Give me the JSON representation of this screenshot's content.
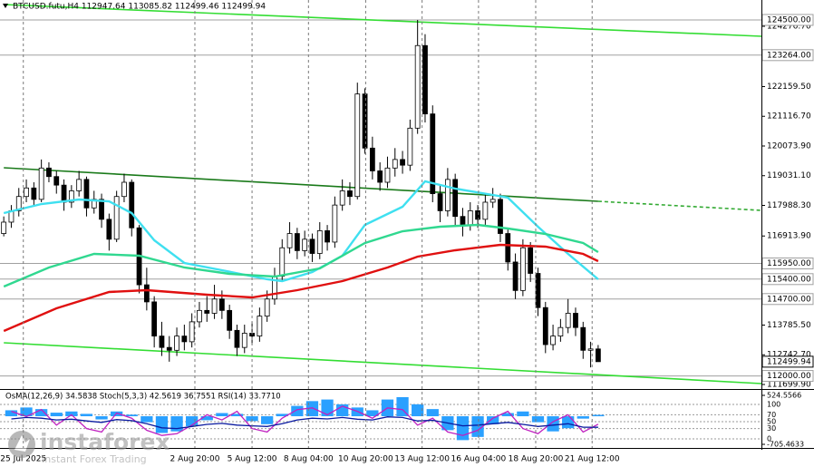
{
  "chart_data": [
    {
      "type": "candlestick",
      "title": "BTCUSD.futu,H4 112947.64 113085.82 112499.46 112499.94",
      "ohlc": [
        [
          117000,
          117600,
          116900,
          117400
        ],
        [
          117400,
          118000,
          117200,
          117800
        ],
        [
          117800,
          118600,
          117600,
          118300
        ],
        [
          118300,
          118900,
          118100,
          118600
        ],
        [
          118600,
          118800,
          118000,
          118200
        ],
        [
          118200,
          119600,
          118100,
          119300
        ],
        [
          119300,
          119500,
          118800,
          119000
        ],
        [
          119000,
          119200,
          118400,
          118700
        ],
        [
          118700,
          118900,
          117800,
          118100
        ],
        [
          118100,
          118700,
          117900,
          118500
        ],
        [
          118500,
          119200,
          118300,
          118900
        ],
        [
          118900,
          119000,
          117600,
          117900
        ],
        [
          117900,
          118500,
          117700,
          118200
        ],
        [
          118200,
          118400,
          117200,
          117500
        ],
        [
          117500,
          117700,
          116400,
          116800
        ],
        [
          116800,
          118500,
          116700,
          118300
        ],
        [
          118300,
          119100,
          118100,
          118800
        ],
        [
          118800,
          118900,
          116900,
          117200
        ],
        [
          117200,
          117300,
          114900,
          115200
        ],
        [
          115200,
          115800,
          114300,
          114600
        ],
        [
          114600,
          114800,
          113000,
          113400
        ],
        [
          113400,
          113900,
          112700,
          113000
        ],
        [
          113000,
          113400,
          112500,
          112900
        ],
        [
          112900,
          113700,
          112700,
          113400
        ],
        [
          113400,
          113800,
          112900,
          113200
        ],
        [
          113200,
          114200,
          113000,
          113900
        ],
        [
          113900,
          114600,
          113700,
          114300
        ],
        [
          114300,
          114800,
          113900,
          114200
        ],
        [
          114200,
          115200,
          114000,
          114700
        ],
        [
          114700,
          115000,
          114000,
          114300
        ],
        [
          114300,
          114500,
          113300,
          113600
        ],
        [
          113600,
          113800,
          112700,
          113000
        ],
        [
          113000,
          113800,
          112800,
          113500
        ],
        [
          113500,
          113900,
          113100,
          113400
        ],
        [
          113400,
          114400,
          113200,
          114100
        ],
        [
          114100,
          115000,
          113900,
          114700
        ],
        [
          114700,
          115800,
          114500,
          115500
        ],
        [
          115500,
          116800,
          115300,
          116500
        ],
        [
          116500,
          117400,
          116300,
          117000
        ],
        [
          117000,
          117200,
          116100,
          116400
        ],
        [
          116400,
          117100,
          116200,
          116800
        ],
        [
          116800,
          117000,
          116000,
          116300
        ],
        [
          116300,
          117400,
          116100,
          117100
        ],
        [
          117100,
          117300,
          116400,
          116700
        ],
        [
          116700,
          118300,
          116500,
          118000
        ],
        [
          118000,
          118900,
          117800,
          118500
        ],
        [
          118500,
          118800,
          118000,
          118300
        ],
        [
          118300,
          122300,
          118200,
          121900
        ],
        [
          121900,
          122100,
          119800,
          120000
        ],
        [
          120000,
          120400,
          118900,
          119200
        ],
        [
          119200,
          119500,
          118500,
          118800
        ],
        [
          118800,
          119700,
          118600,
          119300
        ],
        [
          119300,
          120000,
          119000,
          119600
        ],
        [
          119600,
          119900,
          119100,
          119400
        ],
        [
          119400,
          121000,
          119200,
          120700
        ],
        [
          120700,
          124500,
          120500,
          123600
        ],
        [
          123600,
          124000,
          120900,
          121200
        ],
        [
          121200,
          121500,
          118100,
          118400
        ],
        [
          118400,
          118700,
          117400,
          117800
        ],
        [
          117800,
          119300,
          117600,
          118900
        ],
        [
          118900,
          119100,
          117300,
          117600
        ],
        [
          117600,
          117900,
          116900,
          117300
        ],
        [
          117300,
          118100,
          117100,
          117800
        ],
        [
          117800,
          118000,
          117200,
          117500
        ],
        [
          117500,
          118400,
          117300,
          118100
        ],
        [
          118100,
          118600,
          117900,
          118200
        ],
        [
          118200,
          118400,
          116700,
          117000
        ],
        [
          117000,
          117200,
          115700,
          116000
        ],
        [
          116000,
          116300,
          114700,
          115000
        ],
        [
          115000,
          116800,
          114800,
          116500
        ],
        [
          116500,
          116700,
          115300,
          115600
        ],
        [
          115600,
          115800,
          114100,
          114400
        ],
        [
          114400,
          114600,
          112800,
          113100
        ],
        [
          113100,
          113800,
          112900,
          113400
        ],
        [
          113400,
          114000,
          113200,
          113700
        ],
        [
          113700,
          114700,
          113500,
          114200
        ],
        [
          114200,
          114400,
          113400,
          113700
        ],
        [
          113700,
          113900,
          112600,
          112900
        ],
        [
          112900,
          113200,
          112300,
          112947.64
        ],
        [
          112947.64,
          113085.82,
          112499.46,
          112499.94
        ]
      ],
      "up_color": "#ffffff",
      "down_color": "#000000",
      "xlim": [
        -0.5,
        100.7
      ],
      "xticks": [
        {
          "value": 2.6,
          "label": "25 Jul 2025"
        },
        {
          "value": 25.4,
          "label": "2 Aug 20:00"
        },
        {
          "value": 33.0,
          "label": "5 Aug 12:00"
        },
        {
          "value": 40.5,
          "label": "8 Aug 04:00"
        },
        {
          "value": 48.1,
          "label": "10 Aug 20:00"
        },
        {
          "value": 55.6,
          "label": "13 Aug 12:00"
        },
        {
          "value": 63.1,
          "label": "16 Aug 04:00"
        },
        {
          "value": 70.7,
          "label": "18 Aug 20:00"
        },
        {
          "value": 78.2,
          "label": "21 Aug 12:00"
        }
      ],
      "ylim": [
        111572.5,
        125200
      ],
      "yticks": [
        {
          "value": 124276.7,
          "label": "124276.70"
        },
        {
          "value": 122159.5,
          "label": "122159.50"
        },
        {
          "value": 121116.7,
          "label": "121116.70"
        },
        {
          "value": 120073.9,
          "label": "120073.90"
        },
        {
          "value": 119031.1,
          "label": "119031.10"
        },
        {
          "value": 117988.3,
          "label": "117988.30"
        },
        {
          "value": 116913.9,
          "label": "116913.90"
        },
        {
          "value": 113785.5,
          "label": "113785.50"
        },
        {
          "value": 112742.7,
          "label": "112742.70"
        },
        {
          "value": 111699.9,
          "label": "111699.90"
        }
      ],
      "levels": [
        {
          "value": 124500,
          "label": "124500.00"
        },
        {
          "value": 123264,
          "label": "123264.00"
        },
        {
          "value": 115950,
          "label": "115950.00"
        },
        {
          "value": 115400,
          "label": "115400.00"
        },
        {
          "value": 114700,
          "label": "114700.00"
        },
        {
          "value": 112000,
          "label": "112000.00"
        }
      ],
      "level_color": "#a0a0a0",
      "current": {
        "value": 112499.94,
        "label": "112499.94"
      },
      "ma": [
        {
          "color": "#3fe0f0",
          "x": [
            0,
            5,
            10,
            14,
            17,
            20,
            24,
            29,
            35,
            37,
            41,
            45,
            48,
            53,
            56,
            60,
            65,
            67,
            71,
            75,
            79
          ],
          "values": [
            117718,
            118036,
            118195,
            118131,
            117718,
            116763,
            115966,
            115711,
            115393,
            115330,
            115648,
            116221,
            117303,
            117941,
            118832,
            118577,
            118354,
            118259,
            117240,
            116285,
            115393
          ]
        },
        {
          "color": "#30d890",
          "x": [
            0,
            6,
            12,
            18,
            24,
            30,
            36,
            42,
            48,
            53,
            58,
            63,
            67,
            72,
            77,
            79
          ],
          "values": [
            115138,
            115807,
            116285,
            116221,
            115807,
            115584,
            115488,
            115775,
            116667,
            117081,
            117240,
            117303,
            117176,
            116985,
            116667,
            116349
          ]
        },
        {
          "color": "#e01010",
          "x": [
            0,
            7,
            14,
            19,
            27,
            33,
            39,
            45,
            51,
            55,
            60,
            66,
            72,
            77,
            79
          ],
          "values": [
            113578,
            114374,
            114947,
            115011,
            114852,
            114756,
            115011,
            115330,
            115807,
            116189,
            116412,
            116604,
            116540,
            116285,
            116030
          ]
        }
      ],
      "trendlines": [
        {
          "color": "#33dd33",
          "dashed": false,
          "x": [
            0,
            100.7
          ],
          "values": [
            125040,
            123926
          ]
        },
        {
          "color": "#1a7a1a",
          "dashed": false,
          "x": [
            0,
            79
          ],
          "values": [
            119310,
            118131
          ]
        },
        {
          "color": "#33aa33",
          "dashed": true,
          "x": [
            79,
            100.7
          ],
          "values": [
            118131,
            117813
          ]
        },
        {
          "color": "#33dd33",
          "dashed": false,
          "x": [
            0,
            100.7
          ],
          "values": [
            113164,
            111731
          ]
        }
      ],
      "grid": true,
      "watermark": {
        "brand": "instaforex",
        "tagline": "Instant Forex Trading"
      }
    },
    {
      "type": "indicator",
      "title": "OsMA(12,26,9) 34.5838 Stoch(5,3,3) 42.5619 36.7551 RSI(14) 33.7710",
      "xlim": [
        -0.5,
        100.7
      ],
      "ylim": [
        0,
        100
      ],
      "yticks": [
        100,
        70,
        50,
        30,
        0
      ],
      "y2lim": [
        -705.4633,
        524.5566
      ],
      "y2ticks": [
        524.5566,
        -705.4633
      ],
      "series": [
        {
          "kind": "bar",
          "axis": "y2",
          "color": "#2aa0ff",
          "x": [
            1,
            3,
            5,
            7,
            9,
            11,
            13,
            15,
            17,
            19,
            21,
            23,
            25,
            27,
            29,
            31,
            33,
            35,
            37,
            39,
            41,
            43,
            45,
            47,
            49,
            51,
            53,
            55,
            57,
            59,
            61,
            63,
            65,
            67,
            69,
            71,
            73,
            75,
            77,
            79
          ],
          "values": [
            150,
            220,
            180,
            90,
            120,
            60,
            -80,
            120,
            40,
            -150,
            -420,
            -380,
            -250,
            -100,
            80,
            60,
            -120,
            -200,
            60,
            260,
            380,
            420,
            300,
            220,
            150,
            420,
            480,
            300,
            180,
            -350,
            -600,
            -520,
            -200,
            80,
            120,
            -150,
            -380,
            -300,
            -60,
            34.5838
          ]
        },
        {
          "kind": "line",
          "color": "#c020c0",
          "x": [
            1,
            3,
            5,
            7,
            9,
            11,
            13,
            15,
            17,
            19,
            21,
            23,
            25,
            27,
            29,
            31,
            33,
            35,
            37,
            39,
            41,
            43,
            45,
            47,
            49,
            51,
            53,
            55,
            57,
            59,
            61,
            63,
            65,
            67,
            69,
            71,
            73,
            75,
            77,
            79
          ],
          "values": [
            80,
            65,
            85,
            40,
            70,
            30,
            20,
            75,
            60,
            25,
            10,
            15,
            40,
            70,
            55,
            80,
            30,
            20,
            60,
            85,
            90,
            70,
            95,
            80,
            60,
            90,
            85,
            40,
            60,
            20,
            10,
            25,
            60,
            80,
            30,
            15,
            50,
            70,
            20,
            42.5619
          ]
        },
        {
          "kind": "line",
          "color": "#0a1aa0",
          "x": [
            1,
            3,
            5,
            7,
            9,
            11,
            13,
            15,
            17,
            19,
            21,
            23,
            25,
            27,
            29,
            31,
            33,
            35,
            37,
            39,
            41,
            43,
            45,
            47,
            49,
            51,
            53,
            55,
            57,
            59,
            61,
            63,
            65,
            67,
            69,
            71,
            73,
            75,
            77,
            79
          ],
          "values": [
            58,
            62,
            60,
            55,
            57,
            52,
            48,
            56,
            53,
            44,
            32,
            30,
            36,
            42,
            45,
            40,
            38,
            36,
            44,
            55,
            60,
            58,
            62,
            57,
            55,
            64,
            62,
            52,
            54,
            46,
            38,
            40,
            44,
            48,
            42,
            36,
            40,
            44,
            34,
            33.771
          ]
        }
      ],
      "grid": true
    }
  ]
}
